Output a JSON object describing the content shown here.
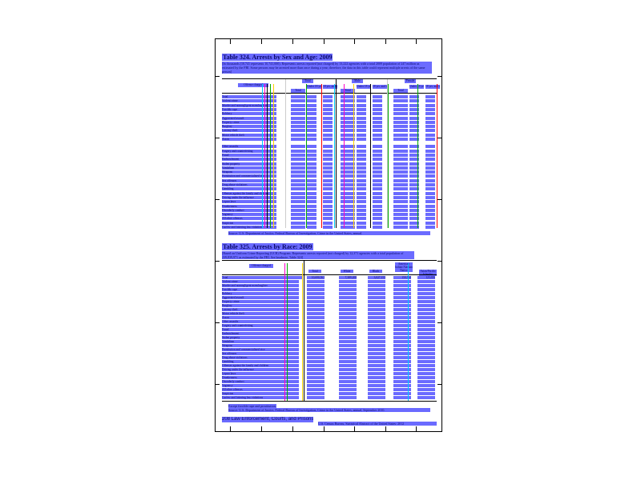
{
  "table324": {
    "title": "Table 324. Arrests by Sex and Age: 2009",
    "headnote": "[In thousands (10,741 represents 10,741,000). Represents arrests reported (not charged) by 13,222 agencies with a total 2009 population of 247 million as estimated by the FBI. Some persons may be arrested more than once during a year; therefore, the data in this table could represent multiple arrests of the same person]",
    "stub_header": "Offense charged",
    "groups": [
      "Total",
      "Male",
      "Female"
    ],
    "subheaders": [
      "Total",
      "Under 18 yrs.",
      "18 yrs. and over"
    ],
    "rows": [
      "Total",
      "Violent crime",
      "Murder and nonnegligent manslaughter",
      "Forcible rape",
      "Robbery",
      "Aggravated assault",
      "Property crime",
      "Burglary",
      "Larceny-theft",
      "Motor vehicle theft",
      "Arson",
      "Other assaults",
      "Forgery and counterfeiting",
      "Fraud",
      "Embezzlement",
      "Stolen property",
      "Vandalism",
      "Weapons",
      "Prostitution and commercialized vice",
      "Sex offenses",
      "Drug abuse violations",
      "Gambling",
      "Offenses against the family and children",
      "Driving under the influence",
      "Liquor laws",
      "Drunkenness",
      "Disorderly conduct",
      "Vagrancy",
      "All other offenses",
      "Suspicion",
      "Curfew and loitering law violations"
    ],
    "footnote": "Source: U.S. Department of Justice, Federal Bureau of Investigation, Crime in the United States, annual."
  },
  "table325": {
    "title": "Table 325. Arrests by Race: 2009",
    "headnote": "[Based on Uniform Crime Reporting (UCR) Program. Represents arrests reported (not charged) by 12,371 agencies with a total population of 239,839,971 as estimated by the FBI. See headnote, Table 324]",
    "stub_header": "Offense charged",
    "columns": [
      "Total",
      "White",
      "Black",
      "American Indian/Alaskan Native",
      "Asian/Pacific Islander"
    ],
    "total_row": [
      "10,690,561",
      "7,389,208",
      "3,027,153",
      "150,544",
      "123,656"
    ],
    "rows": [
      "Total",
      "Violent crime",
      "Murder and nonnegligent manslaughter",
      "Forcible rape",
      "Robbery",
      "Aggravated assault",
      "Property crime",
      "Burglary",
      "Larceny-theft",
      "Motor vehicle theft",
      "Arson",
      "Other assaults",
      "Forgery and counterfeiting",
      "Fraud",
      "Embezzlement",
      "Stolen property",
      "Vandalism",
      "Weapons",
      "Prostitution and commercialized vice",
      "Sex offenses",
      "Drug abuse violations",
      "Gambling",
      "Offenses against the family and children",
      "Driving under the influence",
      "Liquor laws",
      "Drunkenness",
      "Disorderly conduct",
      "Vagrancy",
      "All other offenses",
      "Suspicion",
      "Curfew and loitering law violations"
    ],
    "footnote1": "Except forcible rape and prostitution.",
    "footnote2": "Source: U.S. Department of Justice, Federal Bureau of Investigation, Crime in the United States, annual, September 2010."
  },
  "footer": {
    "page_label": "208 Law Enforcement, Courts, and Prisons",
    "source_line": "U.S. Census Bureau, Statistical Abstract of the United States: 2012"
  },
  "colors": {
    "highlight": "#4646ff",
    "text": "#0a0a6a",
    "rule": "#000000"
  }
}
